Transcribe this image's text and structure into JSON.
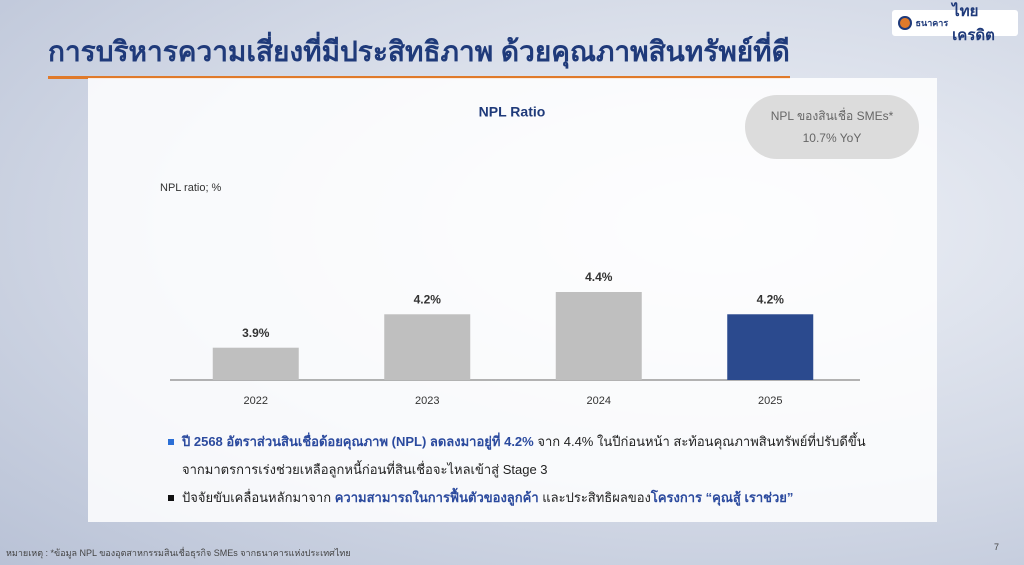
{
  "header": {
    "title": "การบริหารความเสี่ยงที่มีประสิทธิภาพ ด้วยคุณภาพสินทรัพย์ที่ดี",
    "logo_small": "ธนาคาร",
    "logo_main": "ไทยเครดิต"
  },
  "chart_data": {
    "type": "bar",
    "title": "NPL Ratio",
    "y_label": "NPL ratio; %",
    "categories": [
      "2022",
      "2023",
      "2024",
      "2025"
    ],
    "values": [
      3.9,
      4.2,
      4.4,
      4.2
    ],
    "value_labels": [
      "3.9%",
      "4.2%",
      "4.4%",
      "4.2%"
    ],
    "colors": [
      "#bfbfbf",
      "#bfbfbf",
      "#bfbfbf",
      "#2b4a8e"
    ]
  },
  "callout": {
    "line1": "NPL ของสินเชื่อ SMEs*",
    "line2": "10.7% YoY"
  },
  "bullets": [
    {
      "segments": [
        "ปี 2568 อัตราส่วนสินเชื่อด้อยคุณภาพ (NPL) ลดลงมาอยู่ที่ 4.2%",
        " จาก 4.4% ในปีก่อนหน้า สะท้อนคุณภาพสินทรัพย์ที่ปรับดีขึ้น จากมาตรการเร่งช่วยเหลือลูกหนี้ก่อนที่สินเชื่อจะไหลเข้าสู่ Stage 3"
      ]
    },
    {
      "segments": [
        "ปัจจัยขับเคลื่อนหลักมาจาก ",
        "ความสามารถในการฟื้นตัวของลูกค้า",
        " และประสิทธิผลของ",
        "โครงการ “คุณสู้ เราช่วย”"
      ]
    }
  ],
  "footnote": "หมายเหตุ : *ข้อมูล NPL ของอุตสาหกรรมสินเชื่อธุรกิจ SMEs จากธนาคารแห่งประเทศไทย",
  "page_number": "7"
}
